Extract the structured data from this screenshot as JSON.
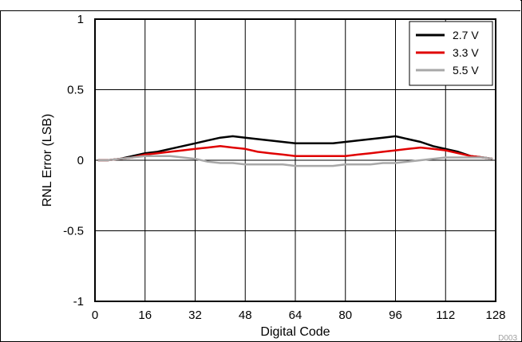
{
  "chart_data": {
    "type": "line",
    "title": "",
    "xlabel": "Digital Code",
    "ylabel": "RNL Error (LSB)",
    "xlim": [
      0,
      128
    ],
    "ylim": [
      -1,
      1
    ],
    "xticks": [
      "0",
      "16",
      "32",
      "48",
      "64",
      "80",
      "96",
      "112",
      "128"
    ],
    "yticks": [
      "1",
      "0.5",
      "0",
      "-0.5",
      "-1"
    ],
    "grid": true,
    "legend_position": "top-right",
    "figure_id": "D003",
    "x": [
      1,
      4,
      8,
      12,
      16,
      20,
      24,
      28,
      32,
      36,
      40,
      44,
      48,
      52,
      56,
      60,
      64,
      68,
      72,
      76,
      80,
      84,
      88,
      92,
      96,
      100,
      104,
      108,
      112,
      116,
      120,
      124,
      127
    ],
    "series": [
      {
        "name": "2.7 V",
        "color": "#000000",
        "values": [
          0.0,
          0.0,
          0.01,
          0.03,
          0.05,
          0.06,
          0.08,
          0.1,
          0.12,
          0.14,
          0.16,
          0.17,
          0.16,
          0.15,
          0.14,
          0.13,
          0.12,
          0.12,
          0.12,
          0.12,
          0.13,
          0.14,
          0.15,
          0.16,
          0.17,
          0.15,
          0.13,
          0.1,
          0.08,
          0.06,
          0.03,
          0.02,
          0.01
        ]
      },
      {
        "name": "3.3 V",
        "color": "#e00000",
        "values": [
          0.0,
          0.0,
          0.01,
          0.02,
          0.04,
          0.05,
          0.06,
          0.07,
          0.08,
          0.09,
          0.1,
          0.09,
          0.08,
          0.06,
          0.05,
          0.04,
          0.03,
          0.03,
          0.03,
          0.03,
          0.03,
          0.04,
          0.05,
          0.06,
          0.07,
          0.08,
          0.09,
          0.08,
          0.07,
          0.05,
          0.03,
          0.02,
          0.01
        ]
      },
      {
        "name": "5.5 V",
        "color": "#a8a8a8",
        "values": [
          0.0,
          0.0,
          0.01,
          0.02,
          0.03,
          0.03,
          0.03,
          0.02,
          0.01,
          -0.01,
          -0.02,
          -0.02,
          -0.03,
          -0.03,
          -0.03,
          -0.03,
          -0.04,
          -0.04,
          -0.04,
          -0.04,
          -0.03,
          -0.03,
          -0.03,
          -0.02,
          -0.02,
          -0.01,
          0.0,
          0.01,
          0.02,
          0.02,
          0.02,
          0.02,
          0.01
        ]
      }
    ]
  }
}
